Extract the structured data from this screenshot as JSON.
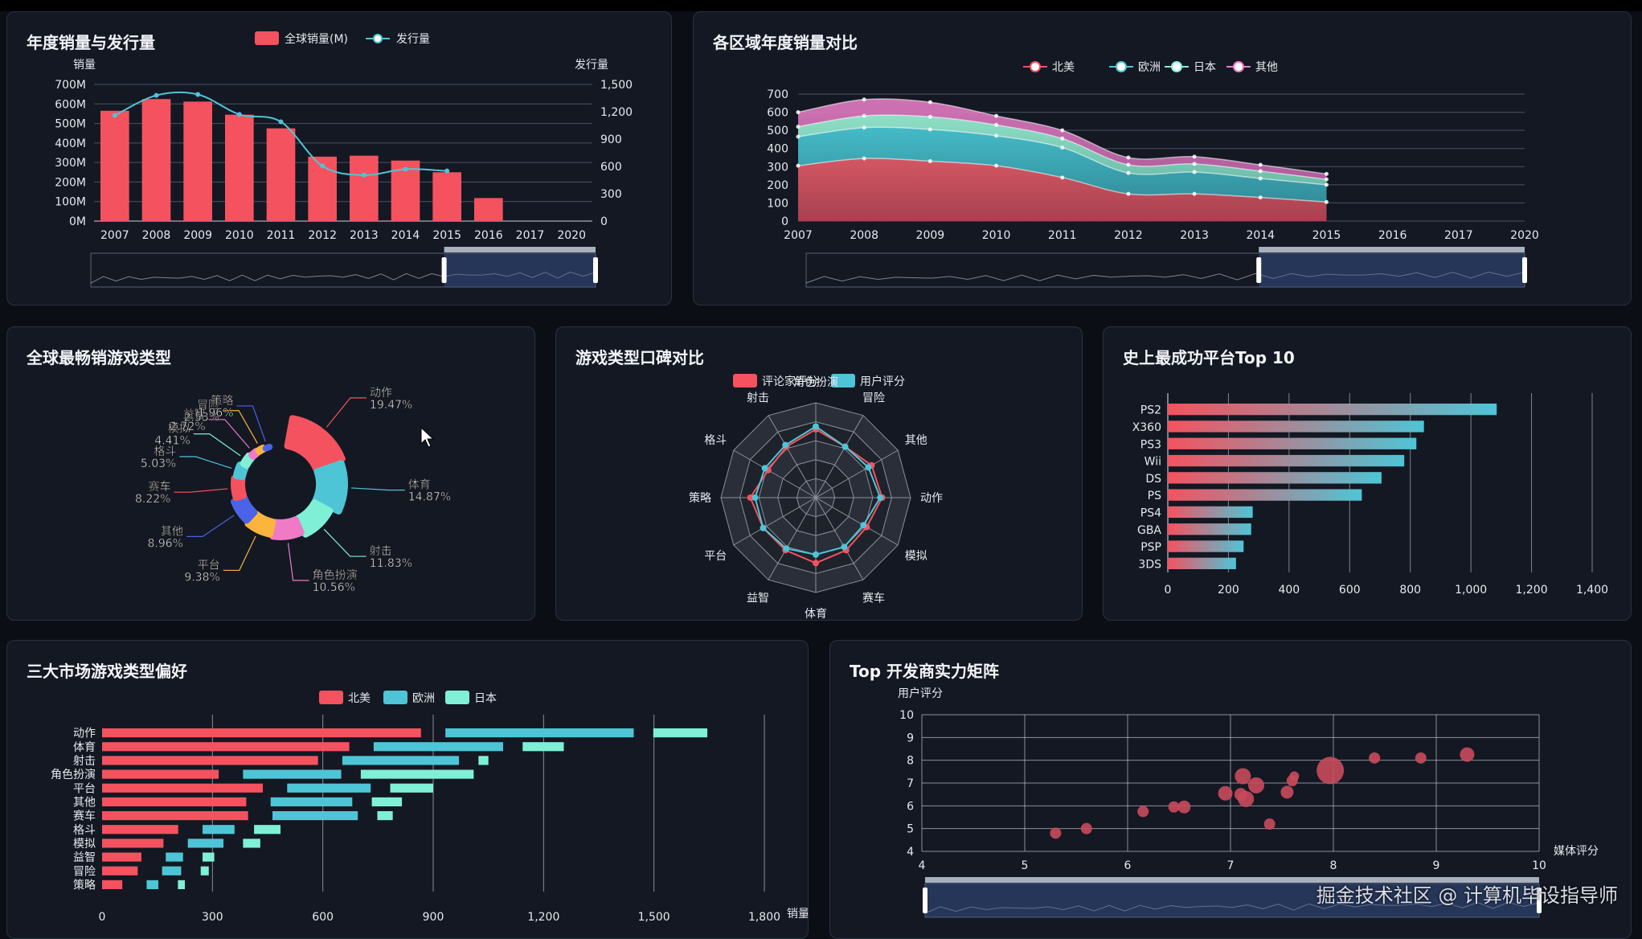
{
  "colors": {
    "red": "#f4525f",
    "cyan": "#4ec5d6",
    "mint": "#7ff0d6",
    "pink": "#f07ac6",
    "grid": "#4a5262",
    "axis": "#e6e9ef"
  },
  "watermark": "掘金技术社区 @ 计算机毕设指导师",
  "charts": [
    {
      "id": "annual",
      "chart_data": {
        "type": "bar",
        "title": "年度销量与发行量",
        "categories": [
          "2007",
          "2008",
          "2009",
          "2010",
          "2011",
          "2012",
          "2013",
          "2014",
          "2015",
          "2016",
          "2017",
          "2020"
        ],
        "ylabel": "销量",
        "y2label": "发行量",
        "yticks": [
          "0M",
          "100M",
          "200M",
          "300M",
          "400M",
          "500M",
          "600M",
          "700M"
        ],
        "y2ticks": [
          "0",
          "300",
          "600",
          "900",
          "1,200",
          "1,500"
        ],
        "ylim": [
          0,
          700
        ],
        "y2lim": [
          0,
          1500
        ],
        "legend": [
          "全球销量(M)",
          "发行量"
        ],
        "series": [
          {
            "name": "全球销量(M)",
            "type": "bar",
            "values": [
              565,
              625,
              612,
              545,
              475,
              330,
              335,
              310,
              250,
              118,
              null,
              null
            ]
          },
          {
            "name": "发行量",
            "type": "line",
            "values": [
              1160,
              1380,
              1390,
              1170,
              1090,
              605,
              505,
              570,
              550,
              null,
              null,
              null
            ]
          }
        ]
      }
    },
    {
      "id": "region",
      "chart_data": {
        "type": "area",
        "title": "各区域年度销量对比",
        "categories": [
          "2007",
          "2008",
          "2009",
          "2010",
          "2011",
          "2012",
          "2013",
          "2014",
          "2015",
          "2016",
          "2017",
          "2020"
        ],
        "yticks": [
          "0",
          "100",
          "200",
          "300",
          "400",
          "500",
          "600",
          "700"
        ],
        "ylim": [
          0,
          700
        ],
        "legend": [
          "北美",
          "欧洲",
          "日本",
          "其他"
        ],
        "series": [
          {
            "name": "北美",
            "values": [
              305,
              345,
              330,
              305,
              240,
              150,
              150,
              130,
              105,
              null,
              null,
              null
            ]
          },
          {
            "name": "欧洲",
            "values": [
              160,
              170,
              175,
              165,
              165,
              115,
              120,
              105,
              95,
              null,
              null,
              null
            ]
          },
          {
            "name": "日本",
            "values": [
              55,
              65,
              70,
              60,
              50,
              45,
              45,
              40,
              30,
              null,
              null,
              null
            ]
          },
          {
            "name": "其他",
            "values": [
              80,
              90,
              80,
              50,
              45,
              40,
              40,
              35,
              30,
              null,
              null,
              null
            ]
          }
        ]
      }
    },
    {
      "id": "genre",
      "chart_data": {
        "type": "pie",
        "title": "全球最畅销游戏类型",
        "slices": [
          {
            "name": "动作",
            "value": 19.47,
            "label": "19.47%"
          },
          {
            "name": "体育",
            "value": 14.87,
            "label": "14.87%"
          },
          {
            "name": "射击",
            "value": 11.83,
            "label": "11.83%"
          },
          {
            "name": "角色扮演",
            "value": 10.56,
            "label": "10.56%"
          },
          {
            "name": "平台",
            "value": 9.38,
            "label": "9.38%"
          },
          {
            "name": "其他",
            "value": 8.96,
            "label": "8.96%"
          },
          {
            "name": "赛车",
            "value": 8.22,
            "label": "8.22%"
          },
          {
            "name": "格斗",
            "value": 5.03,
            "label": "5.03%"
          },
          {
            "name": "模拟",
            "value": 4.41,
            "label": "4.41%"
          },
          {
            "name": "益智",
            "value": 2.72,
            "label": "2.72%"
          },
          {
            "name": "冒险",
            "value": 2.53,
            "label": "2.53%"
          },
          {
            "name": "策略",
            "value": 1.96,
            "label": "1.96%"
          }
        ]
      }
    },
    {
      "id": "radar",
      "chart_data": {
        "type": "radar",
        "title": "游戏类型口碑对比",
        "legend": [
          "评论家评分",
          "用户评分"
        ],
        "indicators": [
          "角色扮演",
          "冒险",
          "其他",
          "动作",
          "模拟",
          "赛车",
          "体育",
          "益智",
          "平台",
          "策略",
          "格斗",
          "射击"
        ],
        "max": 100,
        "series": [
          {
            "name": "评论家评分",
            "values": [
              72,
              62,
              68,
              70,
              62,
              64,
              69,
              64,
              64,
              69,
              58,
              62
            ]
          },
          {
            "name": "用户评分",
            "values": [
              75,
              62,
              64,
              68,
              58,
              60,
              60,
              62,
              64,
              64,
              62,
              64
            ]
          }
        ]
      }
    },
    {
      "id": "platform",
      "chart_data": {
        "type": "bar",
        "orientation": "horizontal",
        "title": "史上最成功平台Top 10",
        "categories": [
          "PS2",
          "X360",
          "PS3",
          "Wii",
          "DS",
          "PS",
          "PS4",
          "GBA",
          "PSP",
          "3DS"
        ],
        "values": [
          1085,
          845,
          820,
          780,
          705,
          640,
          280,
          275,
          250,
          225
        ],
        "xticks": [
          "0",
          "200",
          "400",
          "600",
          "800",
          "1,000",
          "1,200",
          "1,400"
        ],
        "xlim": [
          0,
          1400
        ]
      }
    },
    {
      "id": "market",
      "chart_data": {
        "type": "bar",
        "orientation": "horizontal",
        "stacked": true,
        "title": "三大市场游戏类型偏好",
        "legend": [
          "北美",
          "欧洲",
          "日本"
        ],
        "categories": [
          "动作",
          "体育",
          "射击",
          "角色扮演",
          "平台",
          "其他",
          "赛车",
          "格斗",
          "模拟",
          "益智",
          "冒险",
          "策略"
        ],
        "xticks": [
          "0",
          "300",
          "600",
          "900",
          "1,200",
          "1,500",
          "1,800"
        ],
        "xlim": [
          0,
          1800
        ],
        "xlabel": "销量",
        "series": [
          {
            "name": "北美",
            "values": [
              880,
              685,
              600,
              330,
              450,
              405,
              410,
              220,
              180,
              120,
              110,
              68
            ]
          },
          {
            "name": "欧洲",
            "values": [
              525,
              365,
              330,
              280,
              240,
              235,
              245,
              100,
              110,
              60,
              65,
              45
            ]
          },
          {
            "name": "日本",
            "values": [
              160,
              125,
              40,
              320,
              130,
              95,
              55,
              85,
              60,
              45,
              35,
              32
            ]
          }
        ]
      }
    },
    {
      "id": "dev",
      "chart_data": {
        "type": "scatter",
        "title": "Top 开发商实力矩阵",
        "xlabel": "媒体评分",
        "ylabel": "用户评分",
        "xlim": [
          4,
          10
        ],
        "ylim": [
          4,
          10
        ],
        "xticks": [
          "4",
          "5",
          "6",
          "7",
          "8",
          "9",
          "10"
        ],
        "yticks": [
          "4",
          "5",
          "6",
          "7",
          "8",
          "9",
          "10"
        ],
        "points": [
          {
            "x": 5.3,
            "y": 4.8,
            "size": 4
          },
          {
            "x": 5.6,
            "y": 5.0,
            "size": 4
          },
          {
            "x": 6.15,
            "y": 5.75,
            "size": 4
          },
          {
            "x": 6.45,
            "y": 5.95,
            "size": 4
          },
          {
            "x": 6.55,
            "y": 5.95,
            "size": 5
          },
          {
            "x": 6.95,
            "y": 6.55,
            "size": 6
          },
          {
            "x": 7.1,
            "y": 6.5,
            "size": 5
          },
          {
            "x": 7.12,
            "y": 7.3,
            "size": 7
          },
          {
            "x": 7.15,
            "y": 6.3,
            "size": 7
          },
          {
            "x": 7.25,
            "y": 6.9,
            "size": 7
          },
          {
            "x": 7.38,
            "y": 5.2,
            "size": 4
          },
          {
            "x": 7.55,
            "y": 6.6,
            "size": 5
          },
          {
            "x": 7.6,
            "y": 7.1,
            "size": 4
          },
          {
            "x": 7.62,
            "y": 7.3,
            "size": 3
          },
          {
            "x": 7.97,
            "y": 7.55,
            "size": 14
          },
          {
            "x": 8.4,
            "y": 8.1,
            "size": 4
          },
          {
            "x": 8.85,
            "y": 8.1,
            "size": 4
          },
          {
            "x": 9.3,
            "y": 8.25,
            "size": 6
          }
        ]
      }
    }
  ]
}
